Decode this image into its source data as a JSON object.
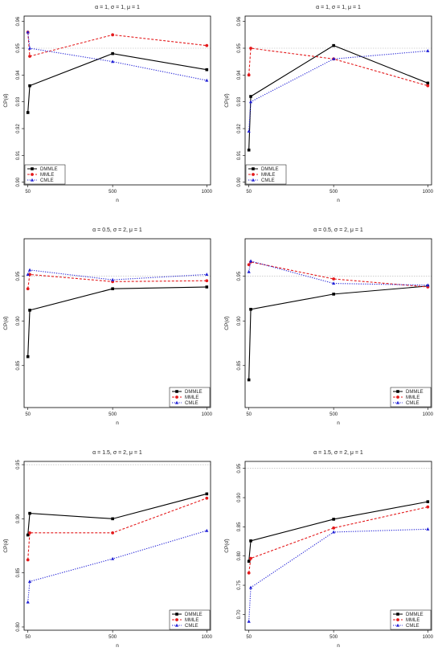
{
  "figure": {
    "colors": {
      "DMMLE": "#000000",
      "MMLE": "#e41a1c",
      "CMLE": "#1f1fd6",
      "reference": "#b0b0b0"
    }
  },
  "chart_data": [
    {
      "type": "line",
      "title": "α = 1, σ = 1, μ = 1",
      "xlabel": "n",
      "ylabel": "CP(α̂)",
      "x": [
        50,
        60,
        500,
        1000
      ],
      "xticks": [
        50,
        500,
        1000
      ],
      "ylim": [
        0.899,
        0.962
      ],
      "yticks": [
        0.9,
        0.91,
        0.92,
        0.93,
        0.94,
        0.95,
        0.96
      ],
      "ytick_labels": [
        "0.90",
        "0.91",
        "0.92",
        "0.93",
        "0.94",
        "0.95",
        "0.96"
      ],
      "reference": 0.95,
      "legend_position": "bottom-left",
      "series": [
        {
          "name": "DMMLE",
          "values": [
            0.926,
            0.936,
            0.948,
            0.942
          ]
        },
        {
          "name": "MMLE",
          "values": [
            0.956,
            0.947,
            0.955,
            0.951
          ]
        },
        {
          "name": "CMLE",
          "values": [
            0.956,
            0.95,
            0.945,
            0.938
          ]
        }
      ]
    },
    {
      "type": "line",
      "title": "α = 1, σ = 1, μ = 1",
      "xlabel": "n",
      "ylabel": "CP(σ̂)",
      "x": [
        50,
        60,
        500,
        1000
      ],
      "xticks": [
        50,
        500,
        1000
      ],
      "ylim": [
        0.899,
        0.962
      ],
      "yticks": [
        0.9,
        0.91,
        0.92,
        0.93,
        0.94,
        0.95,
        0.96
      ],
      "ytick_labels": [
        "0.90",
        "0.91",
        "0.92",
        "0.93",
        "0.94",
        "0.95",
        "0.96"
      ],
      "reference": 0.95,
      "legend_position": "bottom-left",
      "series": [
        {
          "name": "DMMLE",
          "values": [
            0.912,
            0.932,
            0.951,
            0.937
          ]
        },
        {
          "name": "MMLE",
          "values": [
            0.94,
            0.95,
            0.946,
            0.936
          ]
        },
        {
          "name": "CMLE",
          "values": [
            0.919,
            0.93,
            0.946,
            0.949
          ]
        }
      ]
    },
    {
      "type": "line",
      "title": "α = 0.5, σ = 2, μ = 1",
      "xlabel": "n",
      "ylabel": "CP(α̂)",
      "x": [
        50,
        60,
        500,
        1000
      ],
      "xticks": [
        50,
        500,
        1000
      ],
      "ylim": [
        0.803,
        0.992
      ],
      "yticks": [
        0.85,
        0.9,
        0.95
      ],
      "ytick_labels": [
        "0.85",
        "0.90",
        "0.95"
      ],
      "reference": 0.95,
      "legend_position": "bottom-right",
      "series": [
        {
          "name": "DMMLE",
          "values": [
            0.86,
            0.912,
            0.936,
            0.938
          ]
        },
        {
          "name": "MMLE",
          "values": [
            0.936,
            0.952,
            0.944,
            0.945
          ]
        },
        {
          "name": "CMLE",
          "values": [
            0.952,
            0.957,
            0.946,
            0.952
          ]
        }
      ]
    },
    {
      "type": "line",
      "title": "α = 0.5, σ = 2, μ = 1",
      "xlabel": "n",
      "ylabel": "CP(σ̂)",
      "x": [
        50,
        60,
        500,
        1000
      ],
      "xticks": [
        50,
        500,
        1000
      ],
      "ylim": [
        0.803,
        0.992
      ],
      "yticks": [
        0.85,
        0.9,
        0.95
      ],
      "ytick_labels": [
        "0.85",
        "0.90",
        "0.95"
      ],
      "reference": 0.95,
      "legend_position": "bottom-right",
      "series": [
        {
          "name": "DMMLE",
          "values": [
            0.834,
            0.913,
            0.93,
            0.939
          ]
        },
        {
          "name": "MMLE",
          "values": [
            0.963,
            0.966,
            0.947,
            0.938
          ]
        },
        {
          "name": "CMLE",
          "values": [
            0.955,
            0.967,
            0.942,
            0.94
          ]
        }
      ]
    },
    {
      "type": "line",
      "title": "α = 1.5, σ = 2, μ = 1",
      "xlabel": "n",
      "ylabel": "CP(α̂)",
      "x": [
        50,
        60,
        500,
        1000
      ],
      "xticks": [
        50,
        500,
        1000
      ],
      "ylim": [
        0.797,
        0.953
      ],
      "yticks": [
        0.8,
        0.85,
        0.9,
        0.95
      ],
      "ytick_labels": [
        "0.80",
        "0.85",
        "0.90",
        "0.95"
      ],
      "reference": 0.95,
      "legend_position": "bottom-right",
      "series": [
        {
          "name": "DMMLE",
          "values": [
            0.885,
            0.905,
            0.9,
            0.923
          ]
        },
        {
          "name": "MMLE",
          "values": [
            0.862,
            0.887,
            0.887,
            0.919
          ]
        },
        {
          "name": "CMLE",
          "values": [
            0.823,
            0.842,
            0.863,
            0.889
          ]
        }
      ]
    },
    {
      "type": "line",
      "title": "α = 1.5, σ = 2, μ = 1",
      "xlabel": "n",
      "ylabel": "CP(σ̂)",
      "x": [
        50,
        60,
        500,
        1000
      ],
      "xticks": [
        50,
        500,
        1000
      ],
      "ylim": [
        0.673,
        0.962
      ],
      "yticks": [
        0.7,
        0.75,
        0.8,
        0.85,
        0.9,
        0.95
      ],
      "ytick_labels": [
        "0.70",
        "0.75",
        "0.80",
        "0.85",
        "0.90",
        "0.95"
      ],
      "reference": 0.95,
      "legend_position": "bottom-right",
      "series": [
        {
          "name": "DMMLE",
          "values": [
            0.791,
            0.826,
            0.863,
            0.893
          ]
        },
        {
          "name": "MMLE",
          "values": [
            0.771,
            0.796,
            0.848,
            0.884
          ]
        },
        {
          "name": "CMLE",
          "values": [
            0.688,
            0.746,
            0.841,
            0.846
          ]
        }
      ]
    }
  ]
}
